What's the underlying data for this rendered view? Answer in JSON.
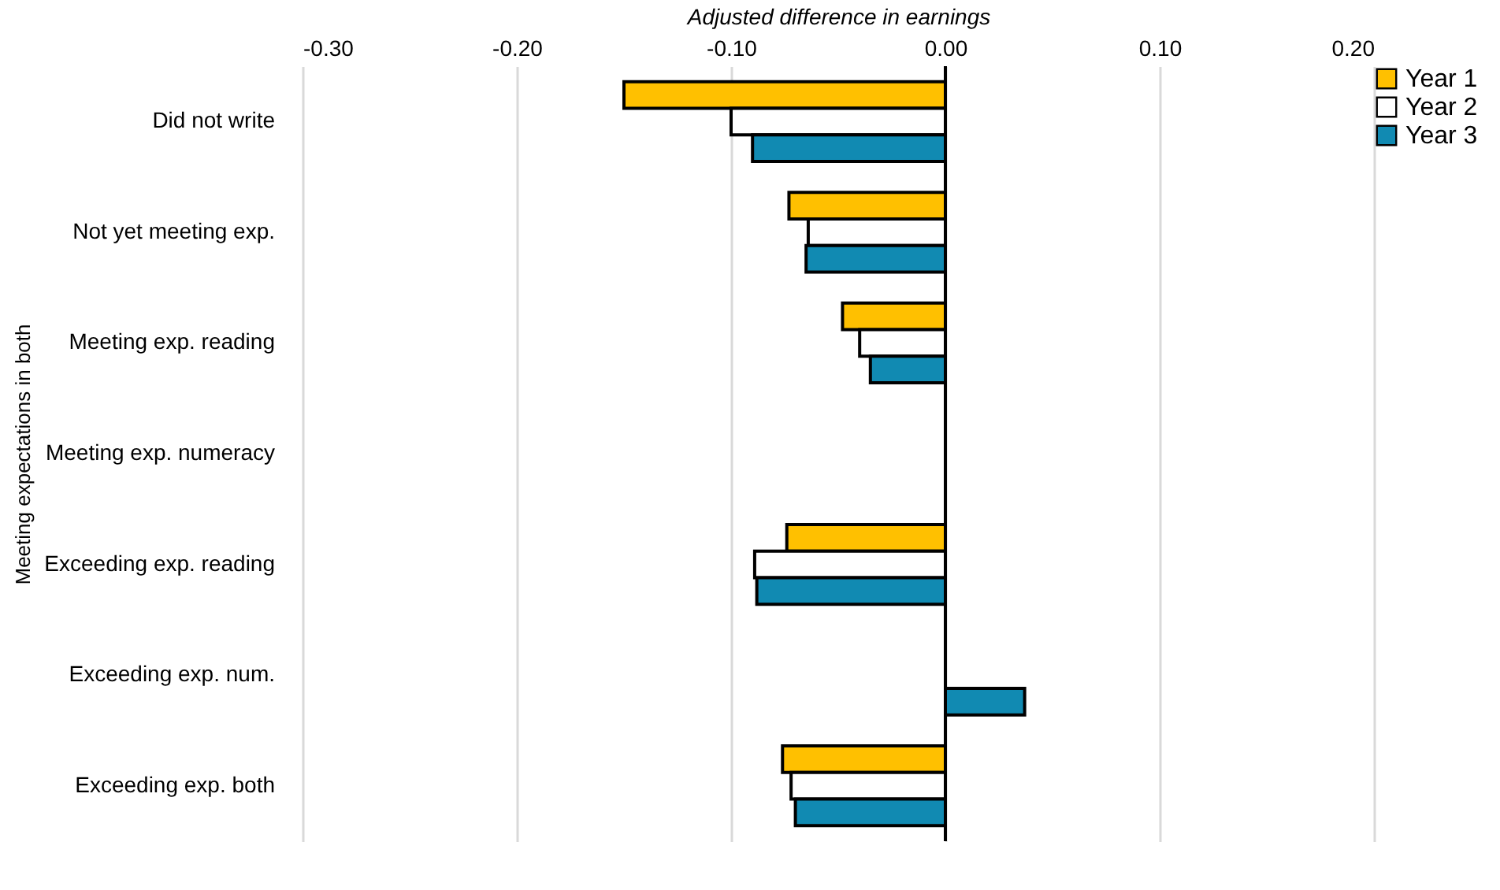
{
  "chart_data": {
    "type": "bar",
    "orientation": "horizontal",
    "xlabel": "Adjusted difference in earnings",
    "ylabel": "Meeting expectations in both",
    "categories": [
      "Did not write",
      "Not yet meeting exp.",
      "Meeting exp. reading",
      "Meeting exp. numeracy",
      "Exceeding exp. reading",
      "Exceeding exp. num.",
      "Exceeding exp. both"
    ],
    "series": [
      {
        "name": "Year 1",
        "color": "#ffc000",
        "values": [
          -0.15,
          -0.073,
          -0.048,
          null,
          -0.074,
          null,
          -0.076
        ]
      },
      {
        "name": "Year 2",
        "color": "#ffffff",
        "values": [
          -0.1,
          -0.064,
          -0.04,
          null,
          -0.089,
          null,
          -0.072
        ]
      },
      {
        "name": "Year 3",
        "color": "#118ab2",
        "values": [
          -0.09,
          -0.065,
          -0.035,
          null,
          -0.088,
          0.037,
          -0.07
        ]
      }
    ],
    "xlim": [
      -0.3,
      0.2
    ],
    "xticks": [
      {
        "value": -0.3,
        "label": "-0.30"
      },
      {
        "value": -0.2,
        "label": "-0.20"
      },
      {
        "value": -0.1,
        "label": "-0.10"
      },
      {
        "value": 0,
        "label": "0.00"
      },
      {
        "value": 0.1,
        "label": "0.10"
      },
      {
        "value": 0.2,
        "label": "0.20"
      }
    ],
    "grid": "x",
    "legend": "right"
  }
}
